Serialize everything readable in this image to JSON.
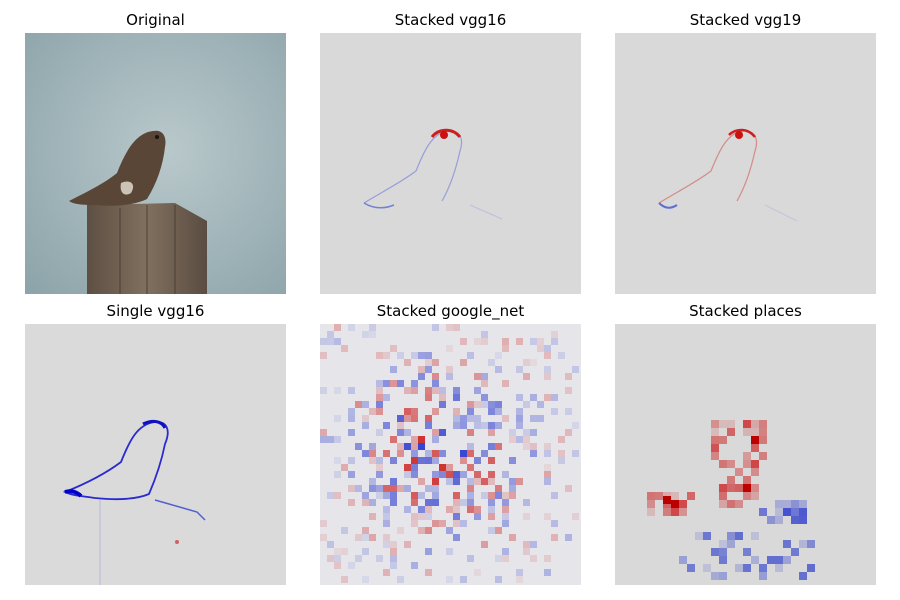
{
  "figure": {
    "panels": [
      {
        "title": "Original"
      },
      {
        "title": "Stacked vgg16"
      },
      {
        "title": "Stacked vgg19"
      },
      {
        "title": "Single vgg16"
      },
      {
        "title": "Stacked google_net"
      },
      {
        "title": "Stacked places"
      }
    ],
    "colors": {
      "background": "#d9d9d9",
      "positive": "#cc0000",
      "negative": "#0000cc",
      "sky": "#9fb3b8",
      "bird": "#5a4636",
      "post": "#6e5e50"
    }
  }
}
